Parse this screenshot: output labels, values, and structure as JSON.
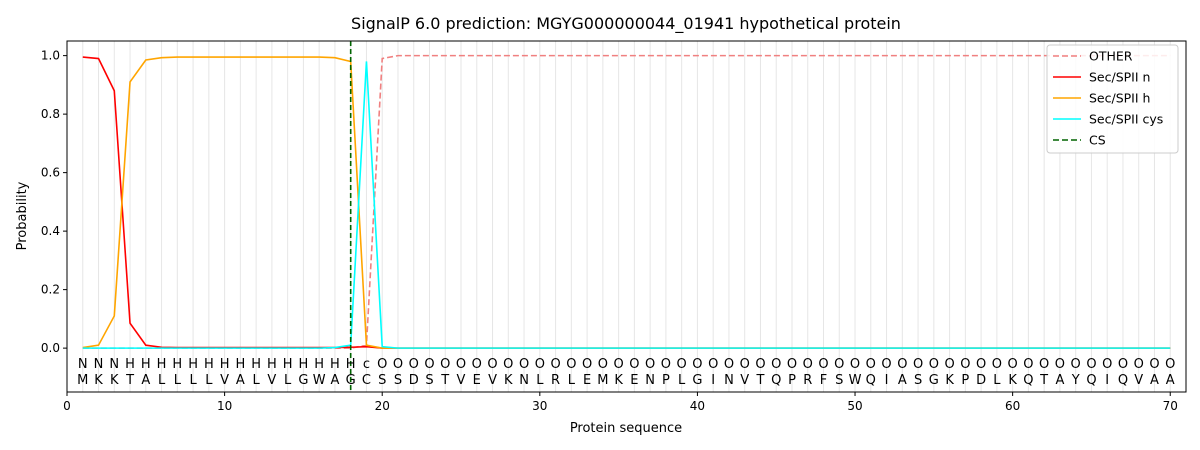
{
  "chart_data": {
    "type": "line",
    "title": "SignalP 6.0 prediction: MGYG000000044_01941 hypothetical protein",
    "xlabel": "Protein sequence",
    "ylabel": "Probability",
    "xlim": [
      0,
      71
    ],
    "ylim": [
      -0.15,
      1.05
    ],
    "xticks": [
      0,
      10,
      20,
      30,
      40,
      50,
      60,
      70
    ],
    "yticks": [
      "0.0",
      "0.2",
      "0.4",
      "0.6",
      "0.8",
      "1.0"
    ],
    "ytick_values": [
      0.0,
      0.2,
      0.4,
      0.6,
      0.8,
      1.0
    ],
    "legend_position": "top-right",
    "sequence": [
      "M",
      "K",
      "K",
      "T",
      "A",
      "L",
      "L",
      "L",
      "L",
      "V",
      "A",
      "L",
      "V",
      "L",
      "G",
      "W",
      "A",
      "G",
      "C",
      "S",
      "S",
      "D",
      "S",
      "T",
      "V",
      "E",
      "V",
      "K",
      "N",
      "L",
      "R",
      "L",
      "E",
      "M",
      "K",
      "E",
      "N",
      "P",
      "L",
      "G",
      "I",
      "N",
      "V",
      "T",
      "Q",
      "P",
      "R",
      "F",
      "S",
      "W",
      "Q",
      "I",
      "A",
      "S",
      "G",
      "K",
      "P",
      "D",
      "L",
      "K",
      "Q",
      "T",
      "A",
      "Y",
      "Q",
      "I",
      "Q",
      "V",
      "A",
      "A"
    ],
    "region_labels": [
      "N",
      "N",
      "N",
      "H",
      "H",
      "H",
      "H",
      "H",
      "H",
      "H",
      "H",
      "H",
      "H",
      "H",
      "H",
      "H",
      "H",
      "H",
      "c",
      "O",
      "O",
      "O",
      "O",
      "O",
      "O",
      "O",
      "O",
      "O",
      "O",
      "O",
      "O",
      "O",
      "O",
      "O",
      "O",
      "O",
      "O",
      "O",
      "O",
      "O",
      "O",
      "O",
      "O",
      "O",
      "O",
      "O",
      "O",
      "O",
      "O",
      "O",
      "O",
      "O",
      "O",
      "O",
      "O",
      "O",
      "O",
      "O",
      "O",
      "O",
      "O",
      "O",
      "O",
      "O",
      "O",
      "O",
      "O",
      "O",
      "O",
      "O"
    ],
    "region_colors": {
      "N": "#ff0000",
      "H": "#ffa500",
      "c": "#00ffff",
      "O": "#808080"
    },
    "cleavage_site": 18,
    "series": [
      {
        "name": "OTHER",
        "color": "#f08080",
        "dash": "dashed",
        "values": [
          0.0,
          0.0,
          0.0,
          0.0,
          0.0,
          0.0,
          0.0,
          0.0,
          0.0,
          0.0,
          0.0,
          0.0,
          0.0,
          0.0,
          0.0,
          0.0,
          0.0,
          0.0,
          0.01,
          0.99,
          1.0,
          1.0,
          1.0,
          1.0,
          1.0,
          1.0,
          1.0,
          1.0,
          1.0,
          1.0,
          1.0,
          1.0,
          1.0,
          1.0,
          1.0,
          1.0,
          1.0,
          1.0,
          1.0,
          1.0,
          1.0,
          1.0,
          1.0,
          1.0,
          1.0,
          1.0,
          1.0,
          1.0,
          1.0,
          1.0,
          1.0,
          1.0,
          1.0,
          1.0,
          1.0,
          1.0,
          1.0,
          1.0,
          1.0,
          1.0,
          1.0,
          1.0,
          1.0,
          1.0,
          1.0,
          1.0,
          1.0,
          1.0,
          1.0,
          1.0
        ]
      },
      {
        "name": "Sec/SPII n",
        "color": "#ff0000",
        "dash": "solid",
        "values": [
          0.995,
          0.99,
          0.88,
          0.085,
          0.01,
          0.003,
          0.002,
          0.002,
          0.002,
          0.002,
          0.002,
          0.002,
          0.002,
          0.002,
          0.002,
          0.002,
          0.002,
          0.003,
          0.005,
          0.0,
          0.0,
          0.0,
          0.0,
          0.0,
          0.0,
          0.0,
          0.0,
          0.0,
          0.0,
          0.0,
          0.0,
          0.0,
          0.0,
          0.0,
          0.0,
          0.0,
          0.0,
          0.0,
          0.0,
          0.0,
          0.0,
          0.0,
          0.0,
          0.0,
          0.0,
          0.0,
          0.0,
          0.0,
          0.0,
          0.0,
          0.0,
          0.0,
          0.0,
          0.0,
          0.0,
          0.0,
          0.0,
          0.0,
          0.0,
          0.0,
          0.0,
          0.0,
          0.0,
          0.0,
          0.0,
          0.0,
          0.0,
          0.0,
          0.0,
          0.0
        ]
      },
      {
        "name": "Sec/SPII h",
        "color": "#ffa500",
        "dash": "solid",
        "values": [
          0.002,
          0.01,
          0.11,
          0.91,
          0.985,
          0.993,
          0.995,
          0.995,
          0.995,
          0.995,
          0.995,
          0.995,
          0.995,
          0.995,
          0.995,
          0.995,
          0.993,
          0.98,
          0.01,
          0.0,
          0.0,
          0.0,
          0.0,
          0.0,
          0.0,
          0.0,
          0.0,
          0.0,
          0.0,
          0.0,
          0.0,
          0.0,
          0.0,
          0.0,
          0.0,
          0.0,
          0.0,
          0.0,
          0.0,
          0.0,
          0.0,
          0.0,
          0.0,
          0.0,
          0.0,
          0.0,
          0.0,
          0.0,
          0.0,
          0.0,
          0.0,
          0.0,
          0.0,
          0.0,
          0.0,
          0.0,
          0.0,
          0.0,
          0.0,
          0.0,
          0.0,
          0.0,
          0.0,
          0.0,
          0.0,
          0.0,
          0.0,
          0.0,
          0.0,
          0.0
        ]
      },
      {
        "name": "Sec/SPII cys",
        "color": "#00ffff",
        "dash": "solid",
        "values": [
          0.0,
          0.0,
          0.0,
          0.0,
          0.0,
          0.0,
          0.0,
          0.0,
          0.0,
          0.0,
          0.0,
          0.0,
          0.0,
          0.0,
          0.0,
          0.0,
          0.002,
          0.01,
          0.98,
          0.005,
          0.0,
          0.0,
          0.0,
          0.0,
          0.0,
          0.0,
          0.0,
          0.0,
          0.0,
          0.0,
          0.0,
          0.0,
          0.0,
          0.0,
          0.0,
          0.0,
          0.0,
          0.0,
          0.0,
          0.0,
          0.0,
          0.0,
          0.0,
          0.0,
          0.0,
          0.0,
          0.0,
          0.0,
          0.0,
          0.0,
          0.0,
          0.0,
          0.0,
          0.0,
          0.0,
          0.0,
          0.0,
          0.0,
          0.0,
          0.0,
          0.0,
          0.0,
          0.0,
          0.0,
          0.0,
          0.0,
          0.0,
          0.0,
          0.0,
          0.0
        ]
      },
      {
        "name": "CS",
        "color": "#006400",
        "dash": "dashed",
        "values": []
      }
    ]
  }
}
